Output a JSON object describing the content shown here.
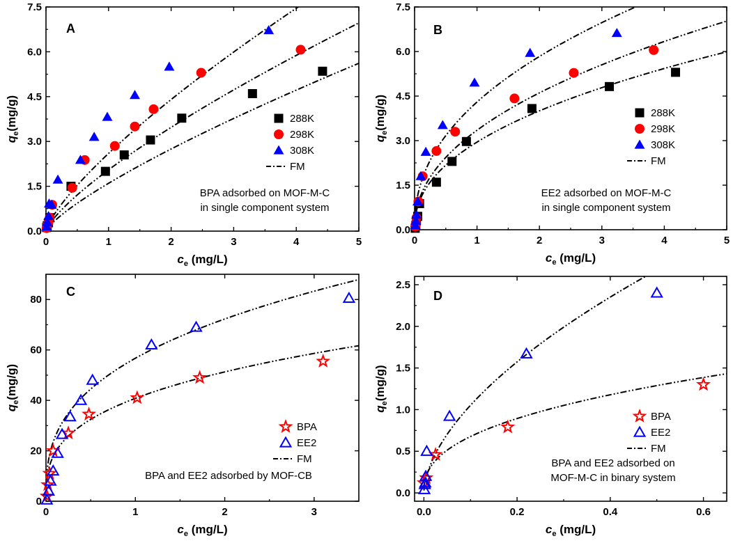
{
  "figure": {
    "chart_count": 4
  },
  "chart_data": [
    {
      "type": "scatter",
      "panel": "A",
      "xlabel_main": "c",
      "xlabel_sub": "e",
      "xlabel_unit": " (mg/L)",
      "ylabel_main": "q",
      "ylabel_sub": "e",
      "ylabel_unit": "(mg/g)",
      "xlim": [
        0,
        5
      ],
      "ylim": [
        0,
        7.5
      ],
      "xticks": [
        0,
        1,
        2,
        3,
        4,
        5
      ],
      "xtick_labels": [
        "0",
        "1",
        "2",
        "3",
        "4",
        "5"
      ],
      "yticks": [
        0,
        1.5,
        3.0,
        4.5,
        6.0,
        7.5
      ],
      "ytick_labels": [
        "0.0",
        "1.5",
        "3.0",
        "4.5",
        "6.0",
        "7.5"
      ],
      "legend_position": "middle-right",
      "annotation_lines": [
        "BPA adsorbed on MOF-M-C",
        "in single component system"
      ],
      "series": [
        {
          "name": "288K",
          "marker": "square",
          "color": "#000000",
          "fill": true,
          "x": [
            0.01,
            0.02,
            0.04,
            0.06,
            0.4,
            0.95,
            1.25,
            1.67,
            2.17,
            3.3,
            4.42
          ],
          "y": [
            0.12,
            0.18,
            0.28,
            0.45,
            1.5,
            2.0,
            2.55,
            3.05,
            3.78,
            4.6,
            5.35
          ]
        },
        {
          "name": "298K",
          "marker": "circle",
          "color": "#ff0000",
          "fill": true,
          "x": [
            0.01,
            0.02,
            0.04,
            0.06,
            0.1,
            0.42,
            0.62,
            1.1,
            1.42,
            1.72,
            2.48,
            4.07
          ],
          "y": [
            0.1,
            0.2,
            0.3,
            0.45,
            0.88,
            1.45,
            2.38,
            2.85,
            3.5,
            4.08,
            5.3,
            6.07
          ]
        },
        {
          "name": "308K",
          "marker": "triangle",
          "color": "#0000ff",
          "fill": true,
          "x": [
            0.01,
            0.02,
            0.04,
            0.05,
            0.09,
            0.19,
            0.55,
            0.77,
            0.98,
            1.42,
            1.97,
            3.56
          ],
          "y": [
            0.15,
            0.3,
            0.5,
            0.92,
            0.88,
            1.72,
            2.38,
            3.15,
            3.82,
            4.55,
            5.5,
            6.72
          ]
        }
      ],
      "fit": {
        "name": "FM",
        "K": [
          1.6,
          2.05,
          2.6
        ],
        "n": [
          0.78,
          0.76,
          0.76
        ],
        "x_end": [
          5,
          5,
          5
        ]
      }
    },
    {
      "type": "scatter",
      "panel": "B",
      "xlabel_main": "c",
      "xlabel_sub": "e",
      "xlabel_unit": " (mg/L)",
      "ylabel_main": "q",
      "ylabel_sub": "e",
      "ylabel_unit": "(mg/g)",
      "xlim": [
        0,
        5
      ],
      "ylim": [
        0,
        7.5
      ],
      "xticks": [
        0,
        1,
        2,
        3,
        4,
        5
      ],
      "xtick_labels": [
        "0",
        "1",
        "2",
        "3",
        "4",
        "5"
      ],
      "yticks": [
        0,
        1.5,
        3.0,
        4.5,
        6.0,
        7.5
      ],
      "ytick_labels": [
        "0.0",
        "1.5",
        "3.0",
        "4.5",
        "6.0",
        "7.5"
      ],
      "legend_position": "middle-right",
      "annotation_lines": [
        "EE2 adsorbed on MOF-M-C",
        "in single component system"
      ],
      "series": [
        {
          "name": "288K",
          "marker": "square",
          "color": "#000000",
          "fill": true,
          "x": [
            0.01,
            0.02,
            0.03,
            0.05,
            0.08,
            0.35,
            0.6,
            0.83,
            1.88,
            3.12,
            4.18
          ],
          "y": [
            0.05,
            0.15,
            0.3,
            0.45,
            0.88,
            1.6,
            2.3,
            2.97,
            4.08,
            4.82,
            5.3
          ]
        },
        {
          "name": "298K",
          "marker": "circle",
          "color": "#ff0000",
          "fill": true,
          "x": [
            0.01,
            0.02,
            0.03,
            0.06,
            0.13,
            0.35,
            0.65,
            1.6,
            2.55,
            3.83
          ],
          "y": [
            0.1,
            0.2,
            0.4,
            0.95,
            1.8,
            2.65,
            3.3,
            4.42,
            5.28,
            6.05
          ]
        },
        {
          "name": "308K",
          "marker": "triangle",
          "color": "#0000ff",
          "fill": true,
          "x": [
            0.01,
            0.02,
            0.03,
            0.05,
            0.1,
            0.18,
            0.45,
            0.96,
            1.85,
            3.24
          ],
          "y": [
            0.15,
            0.3,
            0.5,
            0.95,
            1.8,
            2.62,
            3.52,
            4.95,
            5.95,
            6.62
          ]
        }
      ],
      "fit": {
        "name": "FM",
        "K": [
          2.95,
          3.35,
          4.3
        ],
        "n": [
          0.44,
          0.46,
          0.44
        ],
        "x_end": [
          5,
          5,
          5
        ]
      }
    },
    {
      "type": "scatter",
      "panel": "C",
      "xlabel_main": "c",
      "xlabel_sub": "e",
      "xlabel_unit": " (mg/L)",
      "ylabel_main": "q",
      "ylabel_sub": "e",
      "ylabel_unit": "(mg/g)",
      "xlim": [
        0,
        3.5
      ],
      "ylim": [
        0,
        90
      ],
      "xticks": [
        0,
        1,
        2,
        3
      ],
      "xtick_labels": [
        "0",
        "1",
        "2",
        "3"
      ],
      "yticks": [
        0,
        20,
        40,
        60,
        80
      ],
      "ytick_labels": [
        "0",
        "20",
        "40",
        "60",
        "80"
      ],
      "legend_position": "lower-right",
      "annotation_lines": [
        "BPA and EE2 adsorbed by MOF-CB"
      ],
      "series": [
        {
          "name": "BPA",
          "marker": "star",
          "color": "#ff0000",
          "fill": false,
          "x": [
            0.01,
            0.02,
            0.04,
            0.08,
            0.25,
            0.48,
            1.02,
            1.72,
            3.1
          ],
          "y": [
            2,
            6.5,
            11,
            20,
            27,
            34.5,
            41,
            49,
            55.5
          ]
        },
        {
          "name": "EE2",
          "marker": "triangle",
          "color": "#0000ff",
          "fill": false,
          "x": [
            0.01,
            0.03,
            0.05,
            0.08,
            0.13,
            0.18,
            0.27,
            0.39,
            0.52,
            1.18,
            1.68,
            3.39
          ],
          "y": [
            0.5,
            4,
            8,
            12,
            19,
            26.5,
            33.5,
            40,
            48,
            62,
            69,
            80.5
          ]
        }
      ],
      "fit": {
        "name": "FM",
        "K": [
          40.8,
          56.7
        ],
        "n": [
          0.33,
          0.35
        ],
        "x_end": [
          3.5,
          3.5
        ]
      }
    },
    {
      "type": "scatter",
      "panel": "D",
      "xlabel_main": "c",
      "xlabel_sub": "e",
      "xlabel_unit": " (mg/L)",
      "ylabel_main": "q",
      "ylabel_sub": "e",
      "ylabel_unit": "(mg/g)",
      "xlim": [
        -0.02,
        0.65
      ],
      "ylim": [
        -0.1,
        2.6
      ],
      "xticks": [
        0.0,
        0.2,
        0.4,
        0.6
      ],
      "xtick_labels": [
        "0.0",
        "0.2",
        "0.4",
        "0.6"
      ],
      "yticks": [
        0.0,
        0.5,
        1.0,
        1.5,
        2.0,
        2.5
      ],
      "ytick_labels": [
        "0.0",
        "0.5",
        "1.0",
        "1.5",
        "2.0",
        "2.5"
      ],
      "legend_position": "lower-right",
      "annotation_lines": [
        "BPA and EE2 adsorbed on",
        "MOF-M-C in binary system"
      ],
      "series": [
        {
          "name": "BPA",
          "marker": "star",
          "color": "#ff0000",
          "fill": false,
          "x": [
            0.0,
            0.005,
            0.025,
            0.18,
            0.6
          ],
          "y": [
            0.12,
            0.18,
            0.46,
            0.79,
            1.3
          ]
        },
        {
          "name": "EE2",
          "marker": "triangle",
          "color": "#0000ff",
          "fill": false,
          "x": [
            0.001,
            0.002,
            0.003,
            0.004,
            0.006,
            0.055,
            0.22,
            0.5
          ],
          "y": [
            0.04,
            0.1,
            0.12,
            0.2,
            0.5,
            0.92,
            1.67,
            2.4
          ]
        }
      ],
      "fit": {
        "name": "FM",
        "K": [
          1.7,
          4.0
        ],
        "n": [
          0.4,
          0.58
        ],
        "x_end": [
          0.65,
          0.58
        ]
      }
    }
  ]
}
